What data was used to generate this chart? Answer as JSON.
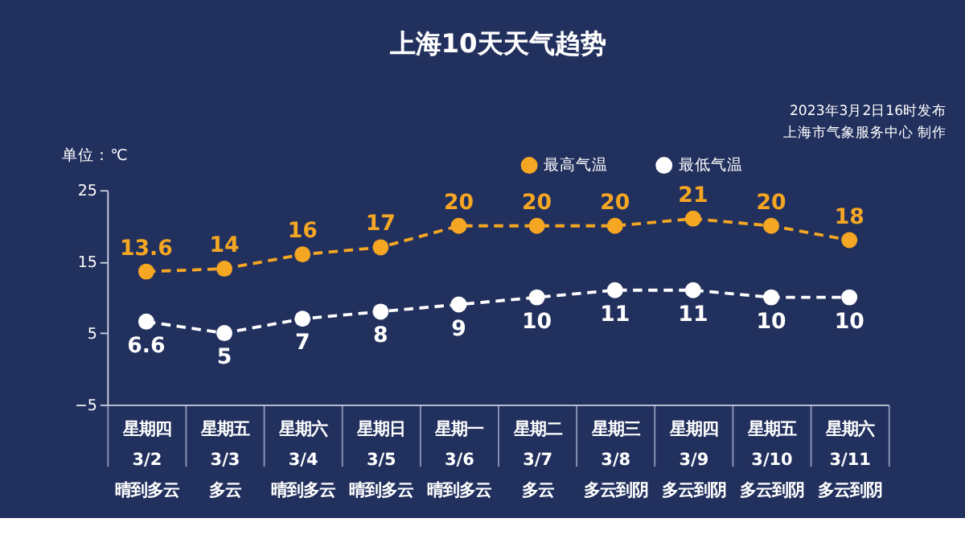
{
  "chart_data": {
    "type": "line",
    "title": "上海10天天气趋势",
    "ylabel": "单位：℃",
    "annotations": [
      "2023年3月2日16时发布",
      "上海市气象服务中心 制作"
    ],
    "categories": [
      "星期四\n3/2\n晴到多云",
      "星期五\n3/3\n多云",
      "星期六\n3/4\n晴到多云",
      "星期日\n3/5\n晴到多云",
      "星期一\n3/6\n晴到多云",
      "星期二\n3/7\n多云",
      "星期三\n3/8\n多云到阴",
      "星期四\n3/9\n多云到阴",
      "星期五\n3/10\n多云到阴",
      "星期六\n3/11\n多云到阴"
    ],
    "series": [
      {
        "name": "最高气温",
        "color": "#f5a623",
        "values": [
          13.6,
          14,
          16,
          17,
          20,
          20,
          20,
          21,
          20,
          18
        ]
      },
      {
        "name": "最低气温",
        "color": "#ffffff",
        "values": [
          6.6,
          5,
          7,
          8,
          9,
          10,
          11,
          11,
          10,
          10
        ]
      }
    ],
    "ylim": [
      -5,
      25
    ],
    "yticks": [
      -5,
      5,
      15,
      25
    ],
    "grid": false,
    "legend": "top right",
    "marker": "circle",
    "line_style": "dashed",
    "data_labels": true
  }
}
